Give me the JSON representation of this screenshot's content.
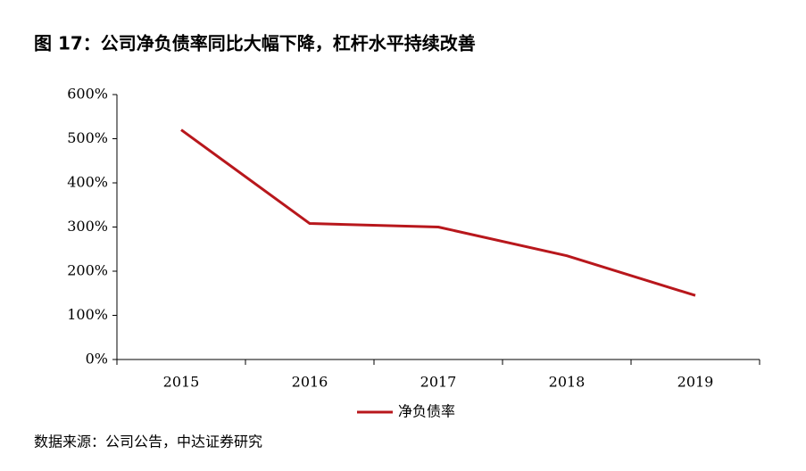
{
  "chart_data": {
    "type": "line",
    "title": "图 17：公司净负债率同比大幅下降，杠杆水平持续改善",
    "categories": [
      "2015",
      "2016",
      "2017",
      "2018",
      "2019"
    ],
    "series": [
      {
        "name": "净负债率",
        "color": "#b8171c",
        "values": [
          520,
          308,
          300,
          235,
          145
        ]
      }
    ],
    "ylim": [
      0,
      600
    ],
    "yticks": [
      {
        "value": 0,
        "label": "0%"
      },
      {
        "value": 100,
        "label": "100%"
      },
      {
        "value": 200,
        "label": "200%"
      },
      {
        "value": 300,
        "label": "300%"
      },
      {
        "value": 400,
        "label": "400%"
      },
      {
        "value": 500,
        "label": "500%"
      },
      {
        "value": 600,
        "label": "600%"
      }
    ],
    "legend": "bottom",
    "source": "数据来源：公司公告，中达证券研究"
  }
}
